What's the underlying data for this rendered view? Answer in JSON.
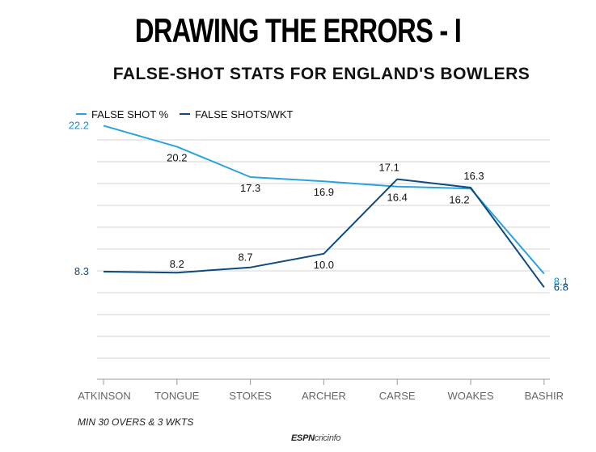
{
  "title": "DRAWING THE ERRORS - I",
  "subtitle": "FALSE-SHOT STATS FOR ENGLAND'S BOWLERS",
  "footnote": "MIN 30 OVERS & 3 WKTS",
  "brand": {
    "prefix": "ESPN",
    "suffix": "cricinfo"
  },
  "colors": {
    "series1": "#2aa3dc",
    "series2": "#0d4a7d",
    "grid": "#d6d6d6"
  },
  "chart_data": {
    "type": "line",
    "categories": [
      "ATKINSON",
      "TONGUE",
      "STOKES",
      "ARCHER",
      "CARSE",
      "WOAKES",
      "BASHIR"
    ],
    "series": [
      {
        "name": "FALSE SHOT %",
        "values": [
          22.2,
          20.2,
          17.3,
          16.9,
          16.4,
          16.2,
          8.1
        ],
        "color": "#2aa3dc"
      },
      {
        "name": "FALSE SHOTS/WKT",
        "values": [
          8.3,
          8.2,
          8.7,
          10.0,
          17.1,
          16.3,
          6.8
        ],
        "color": "#0d4a7d"
      }
    ],
    "ylim": [
      0,
      22.2
    ],
    "xlabel": "",
    "ylabel": "",
    "grid": true,
    "legend": "top-left"
  }
}
